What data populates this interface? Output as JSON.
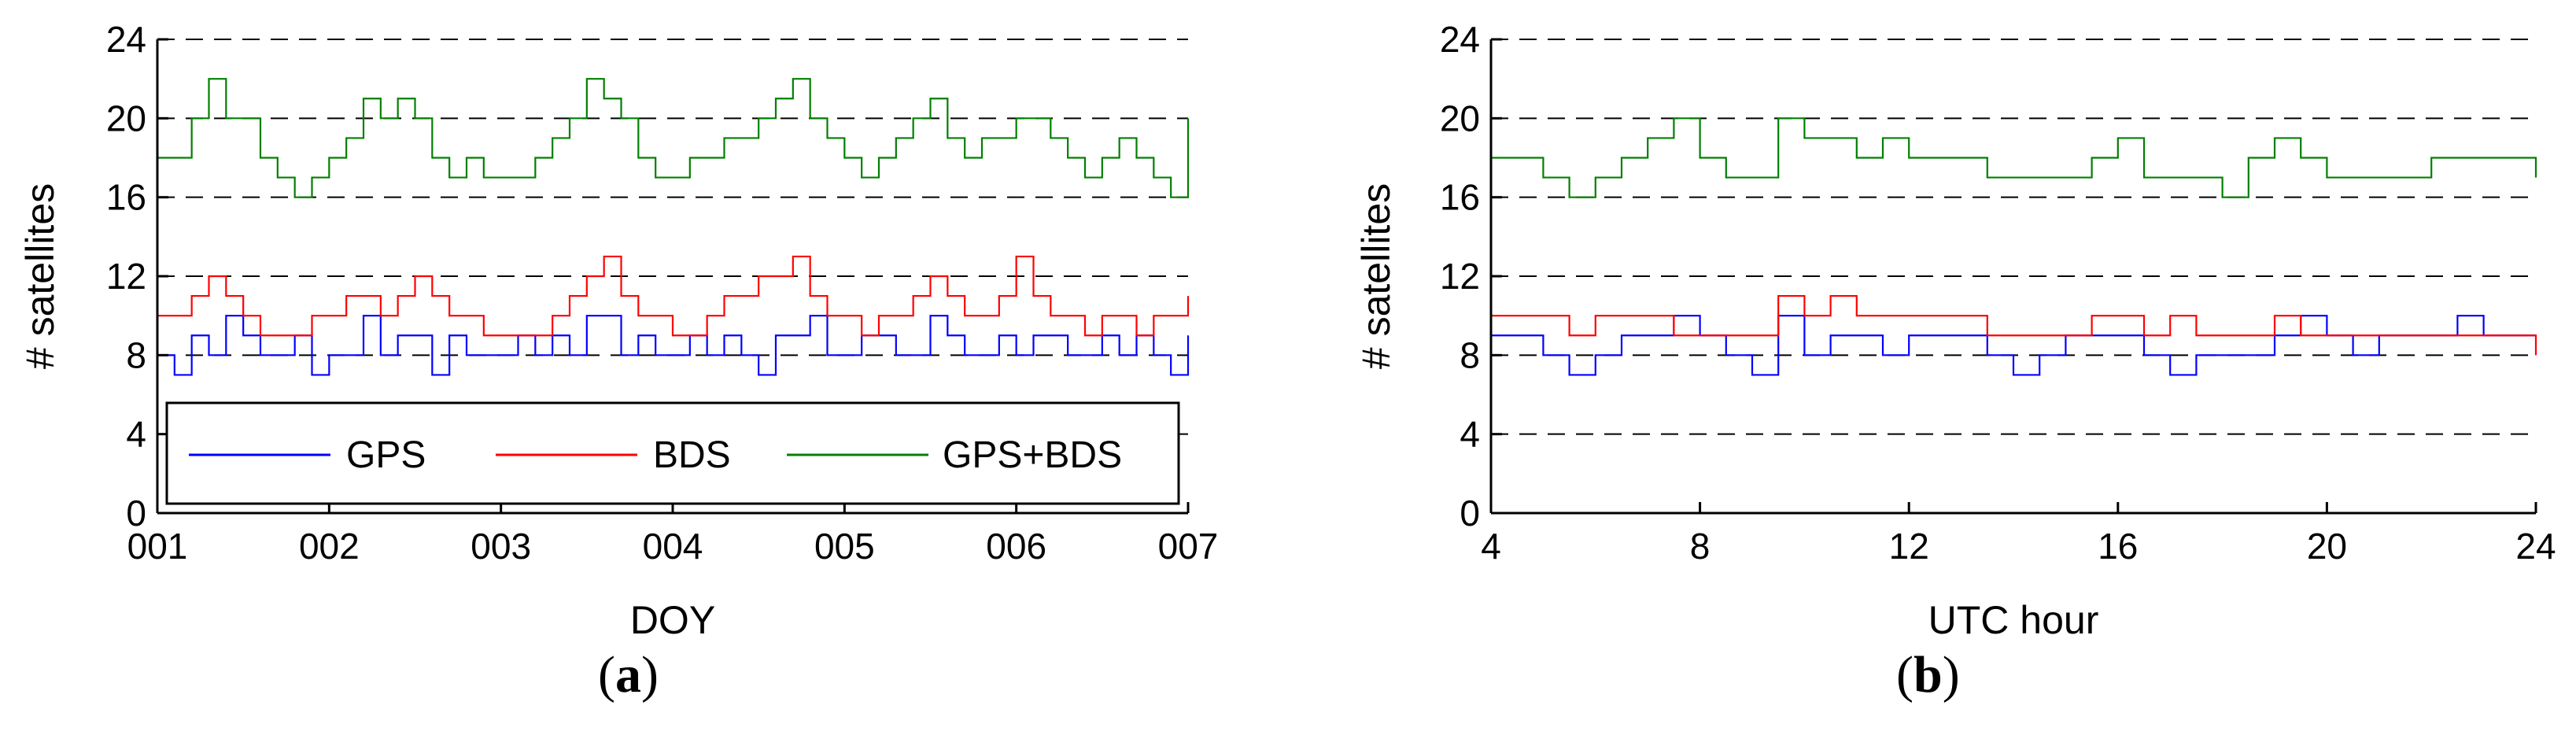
{
  "panels": [
    {
      "caption_letter": "a",
      "legend": [
        {
          "name": "GPS",
          "color": "#0000ff"
        },
        {
          "name": "BDS",
          "color": "#ff0000"
        },
        {
          "name": "GPS+BDS",
          "color": "#008000"
        }
      ]
    },
    {
      "caption_letter": "b"
    }
  ],
  "chart_data": [
    {
      "type": "line",
      "xlabel": "DOY",
      "ylabel": "# satellites",
      "x_ticks": [
        "001",
        "002",
        "003",
        "004",
        "005",
        "006",
        "007"
      ],
      "xlim": [
        1,
        7
      ],
      "ylim": [
        0,
        24
      ],
      "y_ticks": [
        0,
        4,
        8,
        12,
        16,
        20,
        24
      ],
      "grid": "horizontal-dashed",
      "legend_placement": "bottom-inside",
      "series": [
        {
          "name": "GPS",
          "color": "#0000ff",
          "x": [
            1.0,
            1.1,
            1.2,
            1.3,
            1.4,
            1.5,
            1.6,
            1.7,
            1.8,
            1.9,
            2.0,
            2.1,
            2.2,
            2.3,
            2.4,
            2.5,
            2.6,
            2.7,
            2.8,
            2.9,
            3.0,
            3.1,
            3.2,
            3.3,
            3.4,
            3.5,
            3.6,
            3.7,
            3.8,
            3.9,
            4.0,
            4.1,
            4.2,
            4.3,
            4.4,
            4.5,
            4.6,
            4.7,
            4.8,
            4.9,
            5.0,
            5.1,
            5.2,
            5.3,
            5.4,
            5.5,
            5.6,
            5.7,
            5.8,
            5.9,
            6.0,
            6.1,
            6.2,
            6.3,
            6.4,
            6.5,
            6.6,
            6.7,
            6.8,
            6.9,
            7.0
          ],
          "y": [
            8,
            7,
            9,
            8,
            10,
            9,
            8,
            8,
            9,
            7,
            8,
            8,
            10,
            8,
            9,
            9,
            7,
            9,
            8,
            8,
            8,
            9,
            8,
            9,
            8,
            10,
            10,
            8,
            9,
            8,
            8,
            9,
            8,
            9,
            8,
            7,
            9,
            9,
            10,
            8,
            8,
            9,
            9,
            8,
            8,
            10,
            9,
            8,
            8,
            9,
            8,
            9,
            9,
            8,
            8,
            9,
            8,
            9,
            8,
            7,
            9
          ]
        },
        {
          "name": "BDS",
          "color": "#ff0000",
          "x": [
            1.0,
            1.1,
            1.2,
            1.3,
            1.4,
            1.5,
            1.6,
            1.7,
            1.8,
            1.9,
            2.0,
            2.1,
            2.2,
            2.3,
            2.4,
            2.5,
            2.6,
            2.7,
            2.8,
            2.9,
            3.0,
            3.1,
            3.2,
            3.3,
            3.4,
            3.5,
            3.6,
            3.7,
            3.8,
            3.9,
            4.0,
            4.1,
            4.2,
            4.3,
            4.4,
            4.5,
            4.6,
            4.7,
            4.8,
            4.9,
            5.0,
            5.1,
            5.2,
            5.3,
            5.4,
            5.5,
            5.6,
            5.7,
            5.8,
            5.9,
            6.0,
            6.1,
            6.2,
            6.3,
            6.4,
            6.5,
            6.6,
            6.7,
            6.8,
            6.9,
            7.0
          ],
          "y": [
            10,
            10,
            11,
            12,
            11,
            10,
            9,
            9,
            9,
            10,
            10,
            11,
            11,
            10,
            11,
            12,
            11,
            10,
            10,
            9,
            9,
            9,
            9,
            10,
            11,
            12,
            13,
            11,
            10,
            10,
            9,
            9,
            10,
            11,
            11,
            12,
            12,
            13,
            11,
            10,
            10,
            9,
            10,
            10,
            11,
            12,
            11,
            10,
            10,
            11,
            13,
            11,
            10,
            10,
            9,
            10,
            10,
            9,
            10,
            10,
            11
          ]
        },
        {
          "name": "GPS+BDS",
          "color": "#008000",
          "x": [
            1.0,
            1.1,
            1.2,
            1.3,
            1.4,
            1.5,
            1.6,
            1.7,
            1.8,
            1.9,
            2.0,
            2.1,
            2.2,
            2.3,
            2.4,
            2.5,
            2.6,
            2.7,
            2.8,
            2.9,
            3.0,
            3.1,
            3.2,
            3.3,
            3.4,
            3.5,
            3.6,
            3.7,
            3.8,
            3.9,
            4.0,
            4.1,
            4.2,
            4.3,
            4.4,
            4.5,
            4.6,
            4.7,
            4.8,
            4.9,
            5.0,
            5.1,
            5.2,
            5.3,
            5.4,
            5.5,
            5.6,
            5.7,
            5.8,
            5.9,
            6.0,
            6.1,
            6.2,
            6.3,
            6.4,
            6.5,
            6.6,
            6.7,
            6.8,
            6.9,
            7.0
          ],
          "y": [
            18,
            18,
            20,
            22,
            20,
            20,
            18,
            17,
            16,
            17,
            18,
            19,
            21,
            20,
            21,
            20,
            18,
            17,
            18,
            17,
            17,
            17,
            18,
            19,
            20,
            22,
            21,
            20,
            18,
            17,
            17,
            18,
            18,
            19,
            19,
            20,
            21,
            22,
            20,
            19,
            18,
            17,
            18,
            19,
            20,
            21,
            19,
            18,
            19,
            19,
            20,
            20,
            19,
            18,
            17,
            18,
            19,
            18,
            17,
            16,
            20
          ]
        }
      ]
    },
    {
      "type": "line",
      "xlabel": "UTC hour",
      "ylabel": "# satellites",
      "x_ticks": [
        4,
        8,
        12,
        16,
        20,
        24
      ],
      "xlim": [
        4,
        24
      ],
      "ylim": [
        0,
        24
      ],
      "y_ticks": [
        0,
        4,
        8,
        12,
        16,
        20,
        24
      ],
      "grid": "horizontal-dashed",
      "series": [
        {
          "name": "GPS",
          "color": "#0000ff",
          "x": [
            4.0,
            4.5,
            5.0,
            5.5,
            6.0,
            6.5,
            7.0,
            7.5,
            8.0,
            8.5,
            9.0,
            9.5,
            10.0,
            10.5,
            11.0,
            11.5,
            12.0,
            12.5,
            13.0,
            13.5,
            14.0,
            14.5,
            15.0,
            15.5,
            16.0,
            16.5,
            17.0,
            17.5,
            18.0,
            18.5,
            19.0,
            19.5,
            20.0,
            20.5,
            21.0,
            21.5,
            22.0,
            22.5,
            23.0,
            23.5,
            24.0
          ],
          "y": [
            9,
            9,
            8,
            7,
            8,
            9,
            9,
            10,
            9,
            8,
            7,
            10,
            8,
            9,
            9,
            8,
            9,
            9,
            9,
            8,
            7,
            8,
            9,
            9,
            9,
            8,
            7,
            8,
            8,
            8,
            9,
            10,
            9,
            8,
            9,
            9,
            9,
            10,
            9,
            9,
            9
          ]
        },
        {
          "name": "BDS",
          "color": "#ff0000",
          "x": [
            4.0,
            4.5,
            5.0,
            5.5,
            6.0,
            6.5,
            7.0,
            7.5,
            8.0,
            8.5,
            9.0,
            9.5,
            10.0,
            10.5,
            11.0,
            11.5,
            12.0,
            12.5,
            13.0,
            13.5,
            14.0,
            14.5,
            15.0,
            15.5,
            16.0,
            16.5,
            17.0,
            17.5,
            18.0,
            18.5,
            19.0,
            19.5,
            20.0,
            20.5,
            21.0,
            21.5,
            22.0,
            22.5,
            23.0,
            23.5,
            24.0
          ],
          "y": [
            10,
            10,
            10,
            9,
            10,
            10,
            10,
            9,
            9,
            9,
            9,
            11,
            10,
            11,
            10,
            10,
            10,
            10,
            10,
            9,
            9,
            9,
            9,
            10,
            10,
            9,
            10,
            9,
            9,
            9,
            10,
            9,
            9,
            9,
            9,
            9,
            9,
            9,
            9,
            9,
            8
          ]
        },
        {
          "name": "GPS+BDS",
          "color": "#008000",
          "x": [
            4.0,
            4.5,
            5.0,
            5.5,
            6.0,
            6.5,
            7.0,
            7.5,
            8.0,
            8.5,
            9.0,
            9.5,
            10.0,
            10.5,
            11.0,
            11.5,
            12.0,
            12.5,
            13.0,
            13.5,
            14.0,
            14.5,
            15.0,
            15.5,
            16.0,
            16.5,
            17.0,
            17.5,
            18.0,
            18.5,
            19.0,
            19.5,
            20.0,
            20.5,
            21.0,
            21.5,
            22.0,
            22.5,
            23.0,
            23.5,
            24.0
          ],
          "y": [
            18,
            18,
            17,
            16,
            17,
            18,
            19,
            20,
            18,
            17,
            17,
            20,
            19,
            19,
            18,
            19,
            18,
            18,
            18,
            17,
            17,
            17,
            17,
            18,
            19,
            17,
            17,
            17,
            16,
            18,
            19,
            18,
            17,
            17,
            17,
            17,
            18,
            18,
            18,
            18,
            17
          ]
        }
      ]
    }
  ]
}
